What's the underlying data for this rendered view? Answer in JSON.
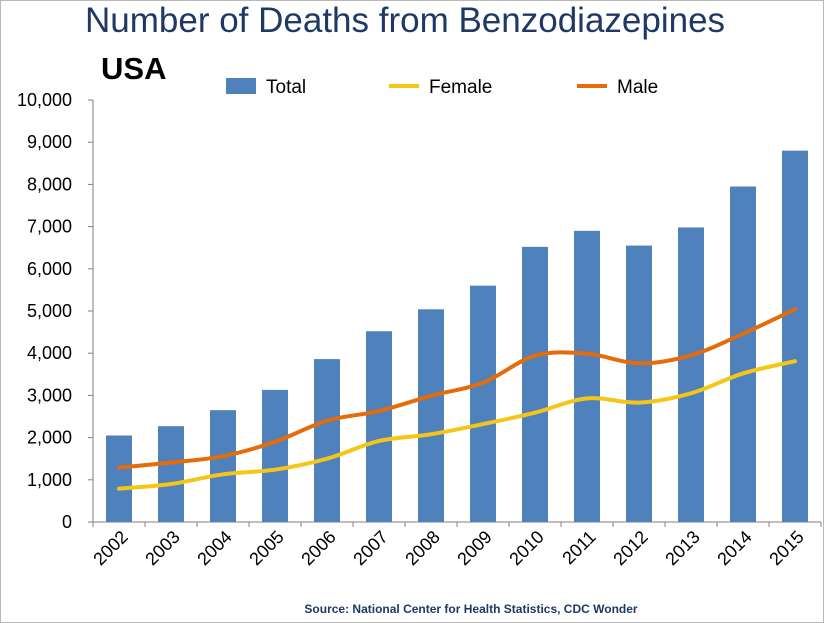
{
  "chart_data": {
    "type": "bar",
    "title": "Number of Deaths from Benzodiazepines",
    "subtitle": "USA",
    "source": "Source: National Center for Health Statistics, CDC Wonder",
    "categories": [
      "2002",
      "2003",
      "2004",
      "2005",
      "2006",
      "2007",
      "2008",
      "2009",
      "2010",
      "2011",
      "2012",
      "2013",
      "2014",
      "2015"
    ],
    "series": [
      {
        "name": "Total",
        "kind": "bar",
        "color": "#4f81bd",
        "values": [
          2050,
          2270,
          2650,
          3130,
          3860,
          4520,
          5040,
          5600,
          6520,
          6900,
          6550,
          6980,
          7950,
          8800
        ]
      },
      {
        "name": "Female",
        "kind": "line",
        "color": "#f5c617",
        "values": [
          790,
          900,
          1130,
          1240,
          1500,
          1920,
          2080,
          2320,
          2590,
          2930,
          2830,
          3050,
          3520,
          3810
        ]
      },
      {
        "name": "Male",
        "kind": "line",
        "color": "#e46c0a",
        "values": [
          1290,
          1410,
          1560,
          1900,
          2400,
          2630,
          2990,
          3300,
          3940,
          3990,
          3760,
          3950,
          4460,
          5040
        ]
      }
    ],
    "y_ticks": [
      "0",
      "1,000",
      "2,000",
      "3,000",
      "4,000",
      "5,000",
      "6,000",
      "7,000",
      "8,000",
      "9,000",
      "10,000"
    ],
    "ylim": [
      0,
      10000
    ],
    "grid": false,
    "legend_position": "top"
  }
}
